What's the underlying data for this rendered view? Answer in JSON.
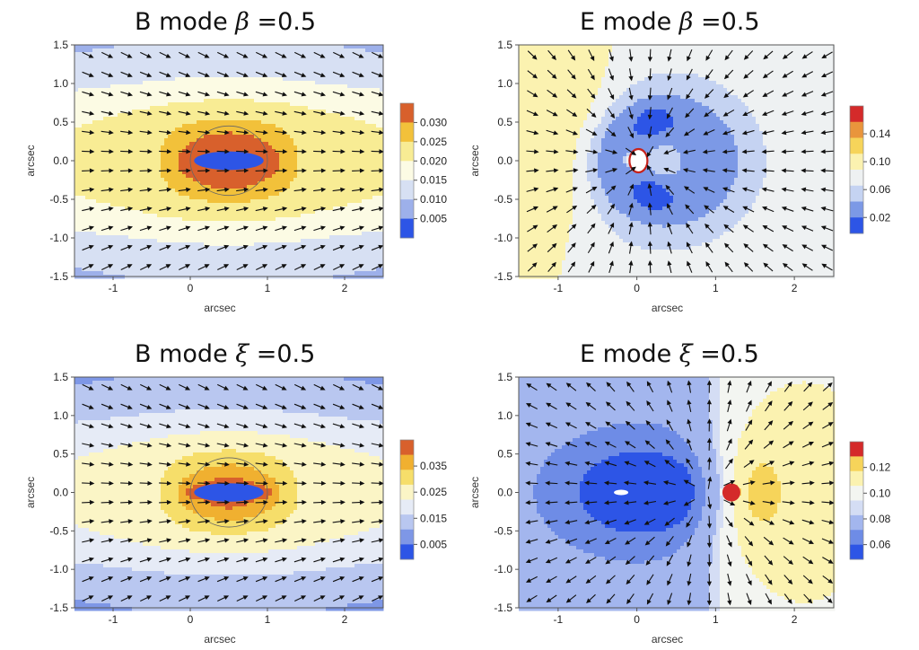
{
  "chart_data": [
    {
      "type": "heatmap",
      "title_mode": "B mode",
      "title_param": "β",
      "title_value": "=0.5",
      "xlabel": "arcsec",
      "ylabel": "arcsec",
      "xlim": [
        -1.5,
        2.5
      ],
      "ylim": [
        -1.5,
        1.5
      ],
      "xticks": [
        "-1",
        "0",
        "1",
        "2"
      ],
      "yticks": [
        "1.5",
        "1.0",
        "0.5",
        "0.0",
        "-0.5",
        "-1.0",
        "-1.5"
      ],
      "colorbar": {
        "labels": [
          "0.030",
          "0.025",
          "0.020",
          "0.015",
          "0.010",
          "0.005"
        ],
        "colors": [
          "#d8602c",
          "#f2c13a",
          "#f8ec94",
          "#fcfbe4",
          "#d7e0f3",
          "#9db0ea",
          "#2d55e6"
        ]
      },
      "field": "b-mode",
      "lens_x": [
        0,
        1
      ]
    },
    {
      "type": "heatmap",
      "title_mode": "E mode",
      "title_param": "β",
      "title_value": "=0.5",
      "xlabel": "arcsec",
      "ylabel": "arcsec",
      "xlim": [
        -1.5,
        2.5
      ],
      "ylim": [
        -1.5,
        1.5
      ],
      "xticks": [
        "-1",
        "0",
        "1",
        "2"
      ],
      "yticks": [
        "1.5",
        "1.0",
        "0.5",
        "0.0",
        "-0.5",
        "-1.0",
        "-1.5"
      ],
      "colorbar": {
        "labels": [
          "0.14",
          "0.10",
          "0.06",
          "0.02"
        ],
        "colors": [
          "#d42a2a",
          "#e9953c",
          "#f6d45a",
          "#fbf2b0",
          "#eef1f2",
          "#c5d3f2",
          "#7c99e6",
          "#2d55e6"
        ]
      },
      "field": "e-beta",
      "lens_x": [
        0,
        1
      ]
    },
    {
      "type": "heatmap",
      "title_mode": "B mode",
      "title_param": "ξ",
      "title_value": "=0.5",
      "xlabel": "arcsec",
      "ylabel": "arcsec",
      "xlim": [
        -1.5,
        2.5
      ],
      "ylim": [
        -1.5,
        1.5
      ],
      "xticks": [
        "-1",
        "0",
        "1",
        "2"
      ],
      "yticks": [
        "1.5",
        "1.0",
        "0.5",
        "0.0",
        "-0.5",
        "-1.0",
        "-1.5"
      ],
      "colorbar": {
        "labels": [
          "0.035",
          "0.025",
          "0.015",
          "0.005"
        ],
        "colors": [
          "#d8602c",
          "#f0b030",
          "#f6de6a",
          "#fbf5c6",
          "#e6ebf6",
          "#b9c7f0",
          "#7e97e6",
          "#2d55e6"
        ]
      },
      "field": "b-mode",
      "lens_x": [
        0,
        1
      ]
    },
    {
      "type": "heatmap",
      "title_mode": "E mode",
      "title_param": "ξ",
      "title_value": "=0.5",
      "xlabel": "arcsec",
      "ylabel": "arcsec",
      "xlim": [
        -1.5,
        2.5
      ],
      "ylim": [
        -1.5,
        1.5
      ],
      "xticks": [
        "-1",
        "0",
        "1",
        "2"
      ],
      "yticks": [
        "1.5",
        "1.0",
        "0.5",
        "0.0",
        "-0.5",
        "-1.0",
        "-1.5"
      ],
      "colorbar": {
        "labels": [
          "0.12",
          "0.10",
          "0.08",
          "0.06"
        ],
        "colors": [
          "#d42a2a",
          "#f6d45a",
          "#fbf2b0",
          "#f3f5f1",
          "#d4ddf4",
          "#a3b6ee",
          "#6e8ce6",
          "#2d55e6"
        ]
      },
      "field": "e-xi",
      "lens_x": [
        0,
        1
      ]
    }
  ]
}
